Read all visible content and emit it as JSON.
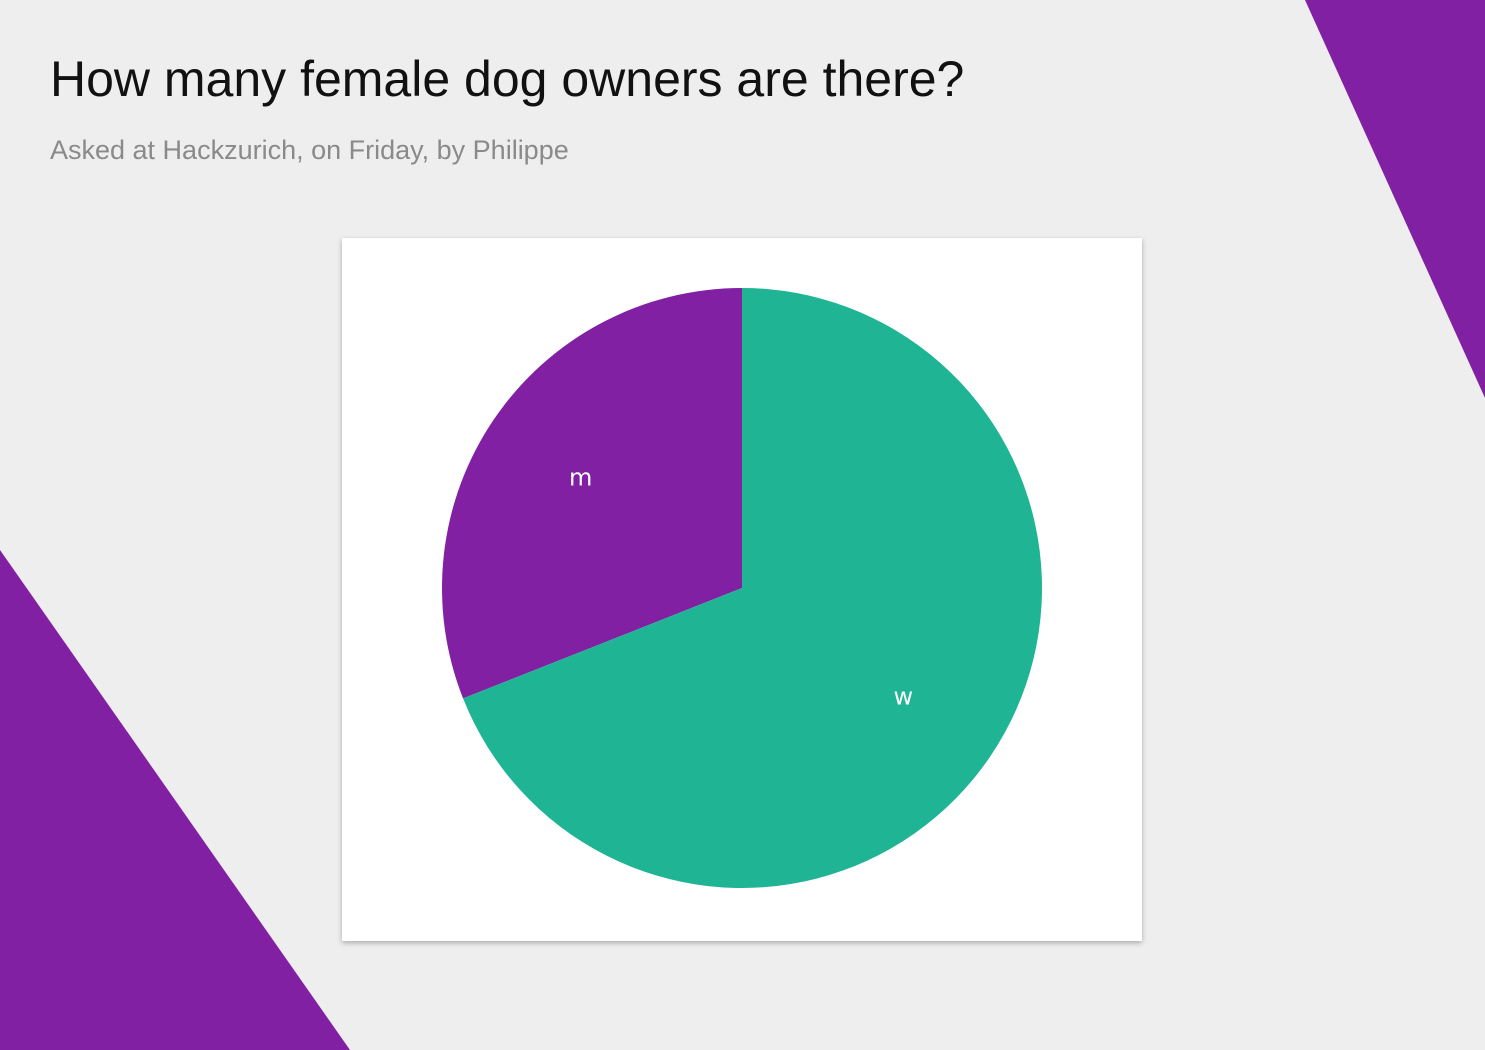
{
  "page": {
    "title": "How many female dog owners are there?",
    "subtitle": "Asked at Hackzurich, on Friday, by Philippe"
  },
  "colors": {
    "background": "#eeeeee",
    "accent_purple": "#8120a2",
    "slice_teal": "#1fb494",
    "card": "#ffffff"
  },
  "chart_data": {
    "type": "pie",
    "title": "",
    "slices": [
      {
        "label": "m",
        "value": 31,
        "color": "#8120a2"
      },
      {
        "label": "w",
        "value": 69,
        "color": "#1fb494"
      }
    ],
    "start_angle_deg": 0,
    "direction": "counterclockwise",
    "legend": "none"
  }
}
